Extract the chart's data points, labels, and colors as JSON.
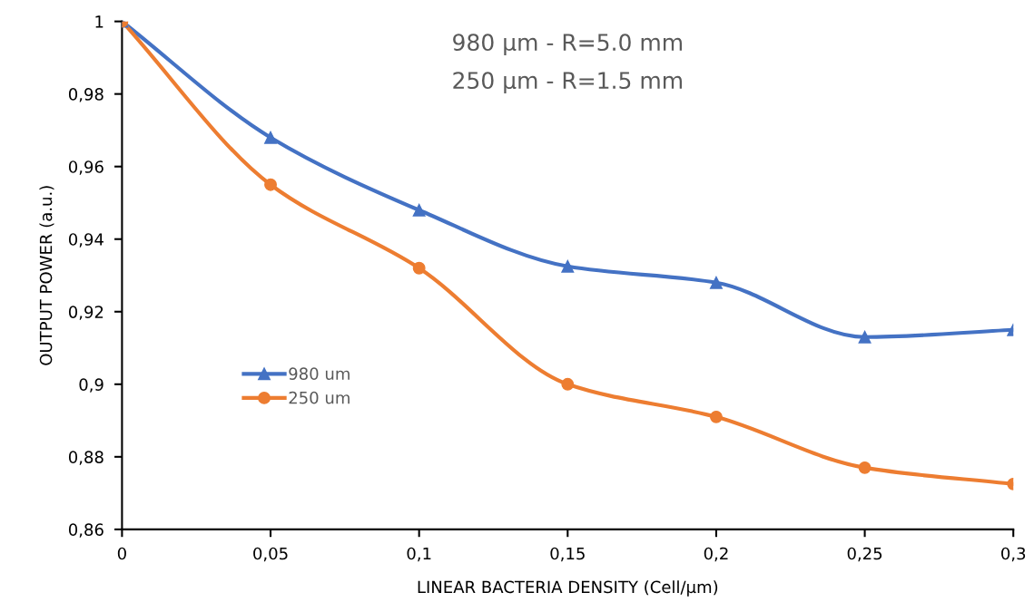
{
  "chart_data": {
    "type": "line",
    "x": [
      0,
      0.05,
      0.1,
      0.15,
      0.2,
      0.25,
      0.3
    ],
    "series": [
      {
        "name": "980 um",
        "color": "#4472c4",
        "marker": "triangle",
        "values": [
          1,
          0.968,
          0.948,
          0.9325,
          0.928,
          0.913,
          0.915
        ]
      },
      {
        "name": "250 um",
        "color": "#ed7d31",
        "marker": "circle",
        "values": [
          1,
          0.955,
          0.932,
          0.9,
          0.891,
          0.877,
          0.8725
        ]
      }
    ],
    "xlabel": "LINEAR BACTERIA DENSITY (Cell/µm)",
    "ylabel": "OUTPUT POWER (a.u.)",
    "annotations": [
      "980 µm - R=5.0 mm",
      "250 µm - R=1.5 mm"
    ],
    "xlim": [
      0,
      0.3
    ],
    "xticks": [
      0,
      {
        "value": 0.05,
        "label": "0,05"
      },
      {
        "value": 0.1,
        "label": "0,1"
      },
      {
        "value": 0.15,
        "label": "0,15"
      },
      {
        "value": 0.2,
        "label": "0,2"
      },
      {
        "value": 0.25,
        "label": "0,25"
      },
      {
        "value": 0.3,
        "label": "0,3"
      }
    ],
    "ylim": [
      0.86,
      1
    ],
    "yticks": [
      {
        "value": 0.86,
        "label": "0,86"
      },
      {
        "value": 0.88,
        "label": "0,88"
      },
      {
        "value": 0.9,
        "label": "0,9"
      },
      {
        "value": 0.92,
        "label": "0,92"
      },
      {
        "value": 0.94,
        "label": "0,94"
      },
      {
        "value": 0.96,
        "label": "0,96"
      },
      {
        "value": 0.98,
        "label": "0,98"
      },
      1
    ],
    "grid": false,
    "legend": "left",
    "line_style": "solid"
  }
}
